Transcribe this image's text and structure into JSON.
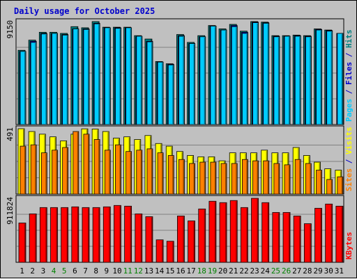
{
  "chart_data": {
    "title": "Daily usage for October 2025",
    "type": "bar",
    "x_labels": [
      "1",
      "2",
      "3",
      "4",
      "5",
      "6",
      "7",
      "8",
      "9",
      "10",
      "11",
      "12",
      "13",
      "14",
      "15",
      "16",
      "17",
      "18",
      "19",
      "20",
      "21",
      "22",
      "23",
      "24",
      "25",
      "26",
      "27",
      "28",
      "29",
      "30",
      "31"
    ],
    "weekend_days": [
      4,
      5,
      11,
      12,
      18,
      19,
      25,
      26
    ],
    "panels": [
      {
        "name": "hits-files-pages",
        "axis_max_label": "9150",
        "axis_max": 9150,
        "legend": [
          {
            "text": "Pages",
            "color": "#00ccff"
          },
          {
            "text": " / ",
            "color": "#0000cc"
          },
          {
            "text": "Files",
            "color": "#0000cc"
          },
          {
            "text": " / ",
            "color": "#0000cc"
          },
          {
            "text": "Hits",
            "color": "#008080"
          }
        ],
        "series": [
          {
            "name": "Hits",
            "color": "#008080",
            "values": [
              6600,
              7500,
              8200,
              8200,
              8100,
              8700,
              8600,
              9150,
              8650,
              8650,
              8650,
              7900,
              7600,
              5600,
              5400,
              8000,
              7300,
              7900,
              8800,
              8500,
              8900,
              8300,
              9150,
              9100,
              7900,
              7900,
              7950,
              7900,
              8500,
              8400,
              null
            ]
          },
          {
            "name": "Files",
            "color": "#0000cc",
            "values": [
              6500,
              7400,
              8100,
              8100,
              8000,
              8500,
              8500,
              9000,
              8600,
              8600,
              8600,
              7800,
              7400,
              5550,
              5350,
              7900,
              7200,
              7800,
              8750,
              8400,
              8800,
              8200,
              9100,
              9050,
              7850,
              7850,
              7900,
              7850,
              8450,
              8350,
              8100
            ]
          },
          {
            "name": "Pages",
            "color": "#00ccff",
            "values": [
              6500,
              7300,
              8050,
              8100,
              7950,
              8500,
              8450,
              8950,
              8600,
              8550,
              8600,
              7850,
              7350,
              5550,
              5300,
              7850,
              7200,
              7800,
              8750,
              8400,
              8700,
              8100,
              9050,
              9000,
              7800,
              7850,
              7850,
              7800,
              8400,
              8300,
              8100
            ]
          }
        ]
      },
      {
        "name": "visits-sites",
        "axis_max_label": "491",
        "axis_max": 491,
        "legend": [
          {
            "text": "Sites",
            "color": "#ff8000"
          },
          {
            "text": " / ",
            "color": "#0000cc"
          },
          {
            "text": "Visits",
            "color": "#ffff00"
          }
        ],
        "series": [
          {
            "name": "Visits",
            "color": "#ffff00",
            "values": [
              491,
              470,
              450,
              430,
              400,
              450,
              490,
              488,
              470,
              420,
              430,
              410,
              440,
              380,
              360,
              320,
              290,
              280,
              280,
              250,
              310,
              310,
              310,
              330,
              310,
              310,
              350,
              290,
              240,
              190,
              180
            ]
          },
          {
            "name": "Sites",
            "color": "#ff8000",
            "values": [
              360,
              370,
              310,
              330,
              350,
              470,
              450,
              410,
              330,
              370,
              320,
              330,
              340,
              310,
              290,
              260,
              230,
              240,
              240,
              230,
              230,
              260,
              250,
              250,
              230,
              220,
              260,
              230,
              180,
              110,
              130
            ]
          }
        ]
      },
      {
        "name": "kbytes",
        "axis_max_label": "911824",
        "axis_max": 911824,
        "legend": [
          {
            "text": "KBytes",
            "color": "#ff0000"
          }
        ],
        "series": [
          {
            "name": "KBytes",
            "color": "#ff0000",
            "values": [
              560000,
              690000,
              780000,
              780000,
              780000,
              790000,
              780000,
              780000,
              790000,
              810000,
              800000,
              690000,
              650000,
              320000,
              300000,
              660000,
              590000,
              760000,
              870000,
              850000,
              880000,
              780000,
              911824,
              850000,
              710000,
              710000,
              660000,
              550000,
              770000,
              830000,
              800000
            ]
          }
        ]
      }
    ]
  }
}
